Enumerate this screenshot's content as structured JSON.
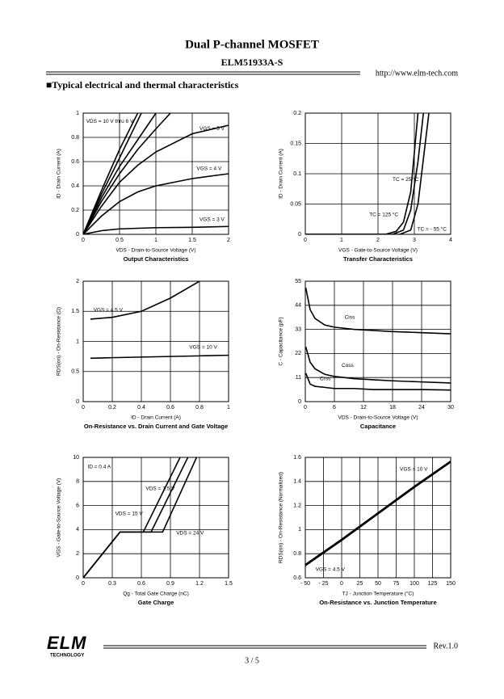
{
  "header": {
    "title": "Dual P-channel MOSFET",
    "part": "ELM51933A-S",
    "url": "http://www.elm-tech.com",
    "section": "■Typical electrical and thermal characteristics"
  },
  "chart_data": [
    {
      "type": "line",
      "title": "Output Characteristics",
      "xlabel": "VDS - Drain-to-Source Voltage (V)",
      "ylabel": "ID - Drain Current (A)",
      "color": "#000000",
      "grid": true,
      "xlim": [
        0,
        2
      ],
      "ylim": [
        0,
        1
      ],
      "xticks": [
        0,
        0.5,
        1,
        1.5,
        2
      ],
      "yticks": [
        0,
        0.2,
        0.4,
        0.6,
        0.8,
        1
      ],
      "series": [
        {
          "name": "VDS = 10 V thru 6 V",
          "x": [
            0,
            0.25,
            0.5,
            0.75
          ],
          "values": [
            0,
            0.36,
            0.7,
            1
          ]
        },
        {
          "x": [
            0,
            0.25,
            0.5,
            0.8
          ],
          "values": [
            0,
            0.33,
            0.63,
            1
          ]
        },
        {
          "x": [
            0,
            0.25,
            0.5,
            0.75,
            1
          ],
          "values": [
            0,
            0.3,
            0.56,
            0.78,
            1
          ]
        },
        {
          "x": [
            0,
            0.25,
            0.5,
            0.75,
            1,
            1.2
          ],
          "values": [
            0,
            0.27,
            0.5,
            0.7,
            0.87,
            1
          ]
        },
        {
          "name": "VGS = 5 V",
          "x": [
            0,
            0.25,
            0.5,
            0.75,
            1,
            1.5,
            2
          ],
          "values": [
            0,
            0.23,
            0.43,
            0.57,
            0.68,
            0.83,
            0.9
          ]
        },
        {
          "name": "VGS = 4 V",
          "x": [
            0,
            0.25,
            0.5,
            0.75,
            1,
            1.5,
            2
          ],
          "values": [
            0,
            0.15,
            0.27,
            0.35,
            0.4,
            0.46,
            0.5
          ]
        },
        {
          "name": "VGS = 3 V",
          "x": [
            0,
            0.25,
            0.5,
            0.75,
            1,
            1.5,
            2
          ],
          "values": [
            0,
            0.03,
            0.045,
            0.05,
            0.055,
            0.058,
            0.065
          ]
        }
      ]
    },
    {
      "type": "line",
      "title": "Transfer Characteristics",
      "xlabel": "VGS - Gate-to-Source Voltage (V)",
      "ylabel": "ID - Drain Current (A)",
      "color": "#000000",
      "grid": true,
      "xlim": [
        0,
        4
      ],
      "ylim": [
        0,
        0.2
      ],
      "xticks": [
        0,
        1,
        2,
        3,
        4
      ],
      "yticks": [
        0,
        0.05,
        0.1,
        0.15,
        0.2
      ],
      "series": [
        {
          "name": "TC = 25 °C",
          "x": [
            0,
            2.4,
            2.7,
            2.9,
            3.1,
            3.25
          ],
          "values": [
            0,
            0,
            0.007,
            0.04,
            0.12,
            0.2
          ]
        },
        {
          "name": "TC = 125 °C",
          "x": [
            0,
            2.2,
            2.5,
            2.7,
            2.9,
            3.1
          ],
          "values": [
            0,
            0,
            0.005,
            0.02,
            0.07,
            0.2
          ]
        },
        {
          "name": "TC = - 55 °C",
          "x": [
            0,
            2.6,
            2.9,
            3.1,
            3.3,
            3.4
          ],
          "values": [
            0,
            0,
            0.007,
            0.05,
            0.15,
            0.2
          ]
        }
      ]
    },
    {
      "type": "line",
      "title": "On-Resistance vs. Drain Current and Gate Voltage",
      "xlabel": "ID - Drain Current (A)",
      "ylabel": "RDS(on) - On-Resistance (Ω)",
      "color": "#000000",
      "grid": true,
      "xlim": [
        0,
        1
      ],
      "ylim": [
        0,
        2
      ],
      "xticks": [
        0,
        0.2,
        0.4,
        0.6,
        0.8,
        1
      ],
      "yticks": [
        0,
        0.5,
        1,
        1.5,
        2
      ],
      "series": [
        {
          "name": "VGS = 4.5 V",
          "x": [
            0.05,
            0.2,
            0.4,
            0.6,
            0.8
          ],
          "values": [
            1.37,
            1.4,
            1.5,
            1.72,
            2
          ]
        },
        {
          "name": "VGS = 10 V",
          "x": [
            0.05,
            0.2,
            0.4,
            0.6,
            0.8,
            1
          ],
          "values": [
            0.72,
            0.73,
            0.74,
            0.75,
            0.76,
            0.77
          ]
        }
      ]
    },
    {
      "type": "line",
      "title": "Capacitance",
      "xlabel": "VDS - Drain-to-Source Voltage (V)",
      "ylabel": "C - Capacitance (pF)",
      "color": "#000000",
      "grid": true,
      "xlim": [
        0,
        30
      ],
      "ylim": [
        0,
        55
      ],
      "xticks": [
        0,
        6,
        12,
        18,
        24,
        30
      ],
      "yticks": [
        0,
        11,
        22,
        33,
        44,
        55
      ],
      "series": [
        {
          "name": "Ciss",
          "x": [
            0.1,
            1,
            2,
            4,
            6,
            10,
            14,
            18,
            24,
            30
          ],
          "values": [
            52,
            42,
            38,
            35,
            34,
            33,
            32.5,
            32,
            31.5,
            31
          ]
        },
        {
          "name": "Coss",
          "x": [
            0.1,
            1,
            2,
            4,
            6,
            10,
            14,
            18,
            24,
            30
          ],
          "values": [
            25,
            18,
            15,
            12.5,
            11.5,
            10.5,
            10,
            9.5,
            9,
            8.5
          ]
        },
        {
          "name": "Crss",
          "x": [
            0.1,
            1,
            2,
            4,
            6,
            10,
            14,
            18,
            24,
            30
          ],
          "values": [
            13,
            8,
            7,
            6.5,
            6,
            6,
            5.5,
            5.5,
            5.5,
            5.3
          ]
        }
      ]
    },
    {
      "type": "line",
      "title": "Gate Charge",
      "xlabel": "Qg - Total Gate Charge (nC)",
      "ylabel": "VGS - Gate-to-Source Voltage (V)",
      "annotation": "ID = 0.4 A",
      "color": "#000000",
      "grid": true,
      "xlim": [
        0,
        1.5
      ],
      "ylim": [
        0,
        10
      ],
      "xticks": [
        0,
        0.3,
        0.6,
        0.9,
        1.2,
        1.5
      ],
      "yticks": [
        0,
        2,
        4,
        6,
        8,
        10
      ],
      "series": [
        {
          "name": "VDS = 7.5 V",
          "x": [
            0,
            0.38,
            0.62,
            1
          ],
          "values": [
            0,
            3.8,
            3.8,
            10
          ]
        },
        {
          "name": "VDS = 15 V",
          "x": [
            0,
            0.38,
            0.7,
            1.08
          ],
          "values": [
            0,
            3.8,
            3.8,
            10
          ]
        },
        {
          "name": "VDS = 24 V",
          "x": [
            0,
            0.38,
            0.82,
            1.17
          ],
          "values": [
            0,
            3.8,
            3.8,
            10
          ]
        }
      ]
    },
    {
      "type": "line",
      "title": "On-Resistance vs. Junction Temperature",
      "xlabel": "TJ - Junction Temperature (°C)",
      "ylabel": "RDS(on) - On-Resistance (Normalized)",
      "color": "#000000",
      "grid": true,
      "xlim": [
        -50,
        150
      ],
      "ylim": [
        0.6,
        1.6
      ],
      "xticks": [
        {
          "value": -50,
          "label": "- 50"
        },
        {
          "value": -25,
          "label": "- 25"
        },
        0,
        25,
        50,
        75,
        100,
        125,
        150
      ],
      "yticks": [
        0.6,
        0.8,
        1,
        1.2,
        1.4,
        1.6
      ],
      "series": [
        {
          "name": "VGS = 10 V",
          "x": [
            -50,
            0,
            50,
            100,
            150
          ],
          "values": [
            0.71,
            0.92,
            1.14,
            1.36,
            1.57
          ]
        },
        {
          "name": "VGS = 4.5 V",
          "x": [
            -50,
            0,
            50,
            100,
            150
          ],
          "values": [
            0.7,
            0.91,
            1.13,
            1.35,
            1.56
          ]
        }
      ]
    }
  ],
  "footer": {
    "logo": "ELM",
    "logo_sub": "TECHNOLOGY",
    "revision": "Rev.1.0",
    "page": "3 / 5"
  }
}
